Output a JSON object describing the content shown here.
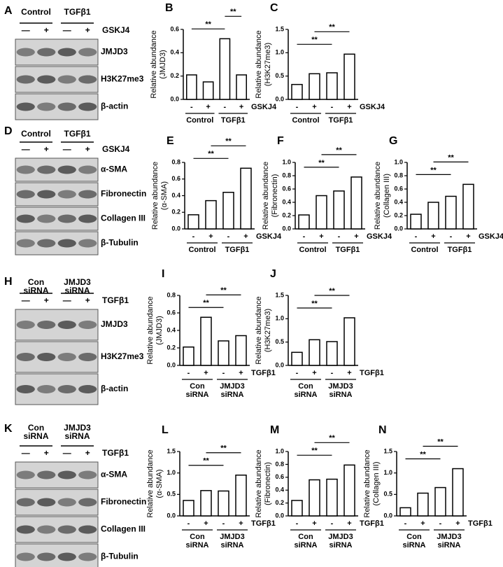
{
  "chart_data": [
    {
      "letter": "B",
      "type": "bar",
      "ylabel": [
        "Relative abundance",
        "(JMJD3)"
      ],
      "categories": [
        "-",
        "+",
        "-",
        "+"
      ],
      "treatment": "GSKJ4",
      "groups": [
        [
          "Control"
        ],
        [
          "TGFβ1"
        ]
      ],
      "values": [
        0.21,
        0.15,
        0.52,
        0.21
      ],
      "ylim": [
        0,
        0.6
      ],
      "yticks": [
        {
          "value": 0,
          "label": "0.0"
        },
        0.2,
        0.4,
        0.6
      ],
      "annotations": [
        {
          "text": "**",
          "from": 0,
          "to": 2
        },
        {
          "text": "**",
          "from": 2,
          "to": 3
        }
      ]
    },
    {
      "letter": "C",
      "type": "bar",
      "ylabel": [
        "Relative abundance",
        "(H3K27me3)"
      ],
      "categories": [
        "-",
        "+",
        "-",
        "+"
      ],
      "treatment": "GSKJ4",
      "groups": [
        [
          "Control"
        ],
        [
          "TGFβ1"
        ]
      ],
      "values": [
        0.32,
        0.55,
        0.57,
        0.97
      ],
      "ylim": [
        0,
        1.5
      ],
      "yticks": [
        {
          "value": 0,
          "label": "0.0"
        },
        0.5,
        {
          "value": 1,
          "label": "1.0"
        },
        1.5
      ],
      "annotations": [
        {
          "text": "**",
          "from": 0,
          "to": 2
        },
        {
          "text": "**",
          "from": 1,
          "to": 3
        }
      ]
    },
    {
      "letter": "E",
      "type": "bar",
      "ylabel": [
        "Relative abundance",
        "(α-SMA)"
      ],
      "categories": [
        "-",
        "+",
        "-",
        "+"
      ],
      "treatment": "GSKJ4",
      "groups": [
        [
          "Control"
        ],
        [
          "TGFβ1"
        ]
      ],
      "values": [
        0.17,
        0.34,
        0.44,
        0.73
      ],
      "ylim": [
        0,
        0.8
      ],
      "yticks": [
        {
          "value": 0,
          "label": "0.0"
        },
        0.2,
        0.4,
        0.6,
        0.8
      ],
      "annotations": [
        {
          "text": "**",
          "from": 0,
          "to": 2
        },
        {
          "text": "**",
          "from": 1,
          "to": 3
        }
      ]
    },
    {
      "letter": "F",
      "type": "bar",
      "ylabel": [
        "Relative abundance",
        "(Fibronectin)"
      ],
      "categories": [
        "-",
        "+",
        "-",
        "+"
      ],
      "treatment": "GSKJ4",
      "groups": [
        [
          "Control"
        ],
        [
          "TGFβ1"
        ]
      ],
      "values": [
        0.21,
        0.5,
        0.57,
        0.78
      ],
      "ylim": [
        0,
        1
      ],
      "yticks": [
        {
          "value": 0,
          "label": "0.0"
        },
        0.2,
        0.4,
        0.6,
        0.8,
        {
          "value": 1,
          "label": "1.0"
        }
      ],
      "annotations": [
        {
          "text": "**",
          "from": 0,
          "to": 2
        },
        {
          "text": "**",
          "from": 1,
          "to": 3
        }
      ]
    },
    {
      "letter": "G",
      "type": "bar",
      "ylabel": [
        "Relative abundance",
        "(Collagen III)"
      ],
      "categories": [
        "-",
        "+",
        "-",
        "+"
      ],
      "treatment": "GSKJ4",
      "groups": [
        [
          "Control"
        ],
        [
          "TGFβ1"
        ]
      ],
      "values": [
        0.22,
        0.4,
        0.49,
        0.67
      ],
      "ylim": [
        0,
        1
      ],
      "yticks": [
        {
          "value": 0,
          "label": "0.0"
        },
        0.2,
        0.4,
        0.6,
        0.8,
        {
          "value": 1,
          "label": "1.0"
        }
      ],
      "annotations": [
        {
          "text": "**",
          "from": 0,
          "to": 2
        },
        {
          "text": "**",
          "from": 1,
          "to": 3
        }
      ]
    },
    {
      "letter": "I",
      "type": "bar",
      "ylabel": [
        "Relative abundance",
        "(JMJD3)"
      ],
      "categories": [
        "-",
        "+",
        "-",
        "+"
      ],
      "treatment": "TGFβ1",
      "groups": [
        [
          "Con",
          "siRNA"
        ],
        [
          "JMJD3",
          "siRNA"
        ]
      ],
      "values": [
        0.21,
        0.55,
        0.28,
        0.34
      ],
      "ylim": [
        0,
        0.8
      ],
      "yticks": [
        {
          "value": 0,
          "label": "0.0"
        },
        0.2,
        0.4,
        0.6,
        0.8
      ],
      "annotations": [
        {
          "text": "**",
          "from": 0,
          "to": 2
        },
        {
          "text": "**",
          "from": 1,
          "to": 3
        }
      ]
    },
    {
      "letter": "J",
      "type": "bar",
      "ylabel": [
        "Relative abundance",
        "(H3K27me3)"
      ],
      "categories": [
        "-",
        "+",
        "-",
        "+"
      ],
      "treatment": "TGFβ1",
      "groups": [
        [
          "Con",
          "siRNA"
        ],
        [
          "JMJD3",
          "siRNA"
        ]
      ],
      "values": [
        0.28,
        0.55,
        0.51,
        1.02
      ],
      "ylim": [
        0,
        1.5
      ],
      "yticks": [
        {
          "value": 0,
          "label": "0.0"
        },
        0.5,
        {
          "value": 1,
          "label": "1.0"
        },
        1.5
      ],
      "annotations": [
        {
          "text": "**",
          "from": 0,
          "to": 2
        },
        {
          "text": "**",
          "from": 1,
          "to": 3
        }
      ]
    },
    {
      "letter": "L",
      "type": "bar",
      "ylabel": [
        "Relative abundance",
        "(α-SMA)"
      ],
      "categories": [
        "-",
        "+",
        "-",
        "+"
      ],
      "treatment": "TGFβ1",
      "groups": [
        [
          "Con",
          "siRNA"
        ],
        [
          "JMJD3",
          "siRNA"
        ]
      ],
      "values": [
        0.36,
        0.59,
        0.58,
        0.95
      ],
      "ylim": [
        0,
        1.5
      ],
      "yticks": [
        {
          "value": 0,
          "label": "0.0"
        },
        0.5,
        {
          "value": 1,
          "label": "1.0"
        },
        1.5
      ],
      "annotations": [
        {
          "text": "**",
          "from": 0,
          "to": 2
        },
        {
          "text": "**",
          "from": 1,
          "to": 3
        }
      ]
    },
    {
      "letter": "M",
      "type": "bar",
      "ylabel": [
        "Relative abundance",
        "(Fibronectin)"
      ],
      "categories": [
        "-",
        "+",
        "-",
        "+"
      ],
      "treatment": "TGFβ1",
      "groups": [
        [
          "Con",
          "siRNA"
        ],
        [
          "JMJD3",
          "siRNA"
        ]
      ],
      "values": [
        0.24,
        0.56,
        0.57,
        0.79
      ],
      "ylim": [
        0,
        1
      ],
      "yticks": [
        {
          "value": 0,
          "label": "0.0"
        },
        0.2,
        0.4,
        0.6,
        0.8,
        {
          "value": 1,
          "label": "1.0"
        }
      ],
      "annotations": [
        {
          "text": "**",
          "from": 0,
          "to": 2
        },
        {
          "text": "**",
          "from": 1,
          "to": 3
        }
      ]
    },
    {
      "letter": "N",
      "type": "bar",
      "ylabel": [
        "Relative abundance",
        "(Collagen III)"
      ],
      "categories": [
        "-",
        "+",
        "-",
        "+"
      ],
      "treatment": "TGFβ1",
      "groups": [
        [
          "Con",
          "siRNA"
        ],
        [
          "JMJD3",
          "siRNA"
        ]
      ],
      "values": [
        0.19,
        0.53,
        0.66,
        1.1
      ],
      "ylim": [
        0,
        1.5
      ],
      "yticks": [
        {
          "value": 0,
          "label": "0.0"
        },
        0.5,
        {
          "value": 1,
          "label": "1.0"
        },
        1.5
      ],
      "annotations": [
        {
          "text": "**",
          "from": 0,
          "to": 2
        },
        {
          "text": "**",
          "from": 1,
          "to": 3
        }
      ]
    }
  ],
  "blots": [
    {
      "letter": "A",
      "groups": [
        [
          "Control"
        ],
        [
          "TGFβ1"
        ]
      ],
      "signs": [
        "—",
        "+",
        "—",
        "+"
      ],
      "treatment": "GSKJ4",
      "bands": [
        "JMJD3",
        "H3K27me3",
        "β-actin"
      ]
    },
    {
      "letter": "D",
      "groups": [
        [
          "Control"
        ],
        [
          "TGFβ1"
        ]
      ],
      "signs": [
        "—",
        "+",
        "—",
        "+"
      ],
      "treatment": "GSKJ4",
      "bands": [
        "α-SMA",
        "Fibronectin",
        "Collagen III",
        "β-Tubulin"
      ]
    },
    {
      "letter": "H",
      "groups": [
        [
          "Con",
          "siRNA"
        ],
        [
          "JMJD3",
          "siRNA"
        ]
      ],
      "signs": [
        "—",
        "+",
        "—",
        "+"
      ],
      "treatment": "TGFβ1",
      "bands": [
        "JMJD3",
        "H3K27me3",
        "β-actin"
      ]
    },
    {
      "letter": "K",
      "groups": [
        [
          "Con",
          "siRNA"
        ],
        [
          "JMJD3",
          "siRNA"
        ]
      ],
      "signs": [
        "—",
        "+",
        "—",
        "+"
      ],
      "treatment": "TGFβ1",
      "bands": [
        "α-SMA",
        "Fibronectin",
        "Collagen III",
        "β-Tubulin"
      ]
    }
  ]
}
